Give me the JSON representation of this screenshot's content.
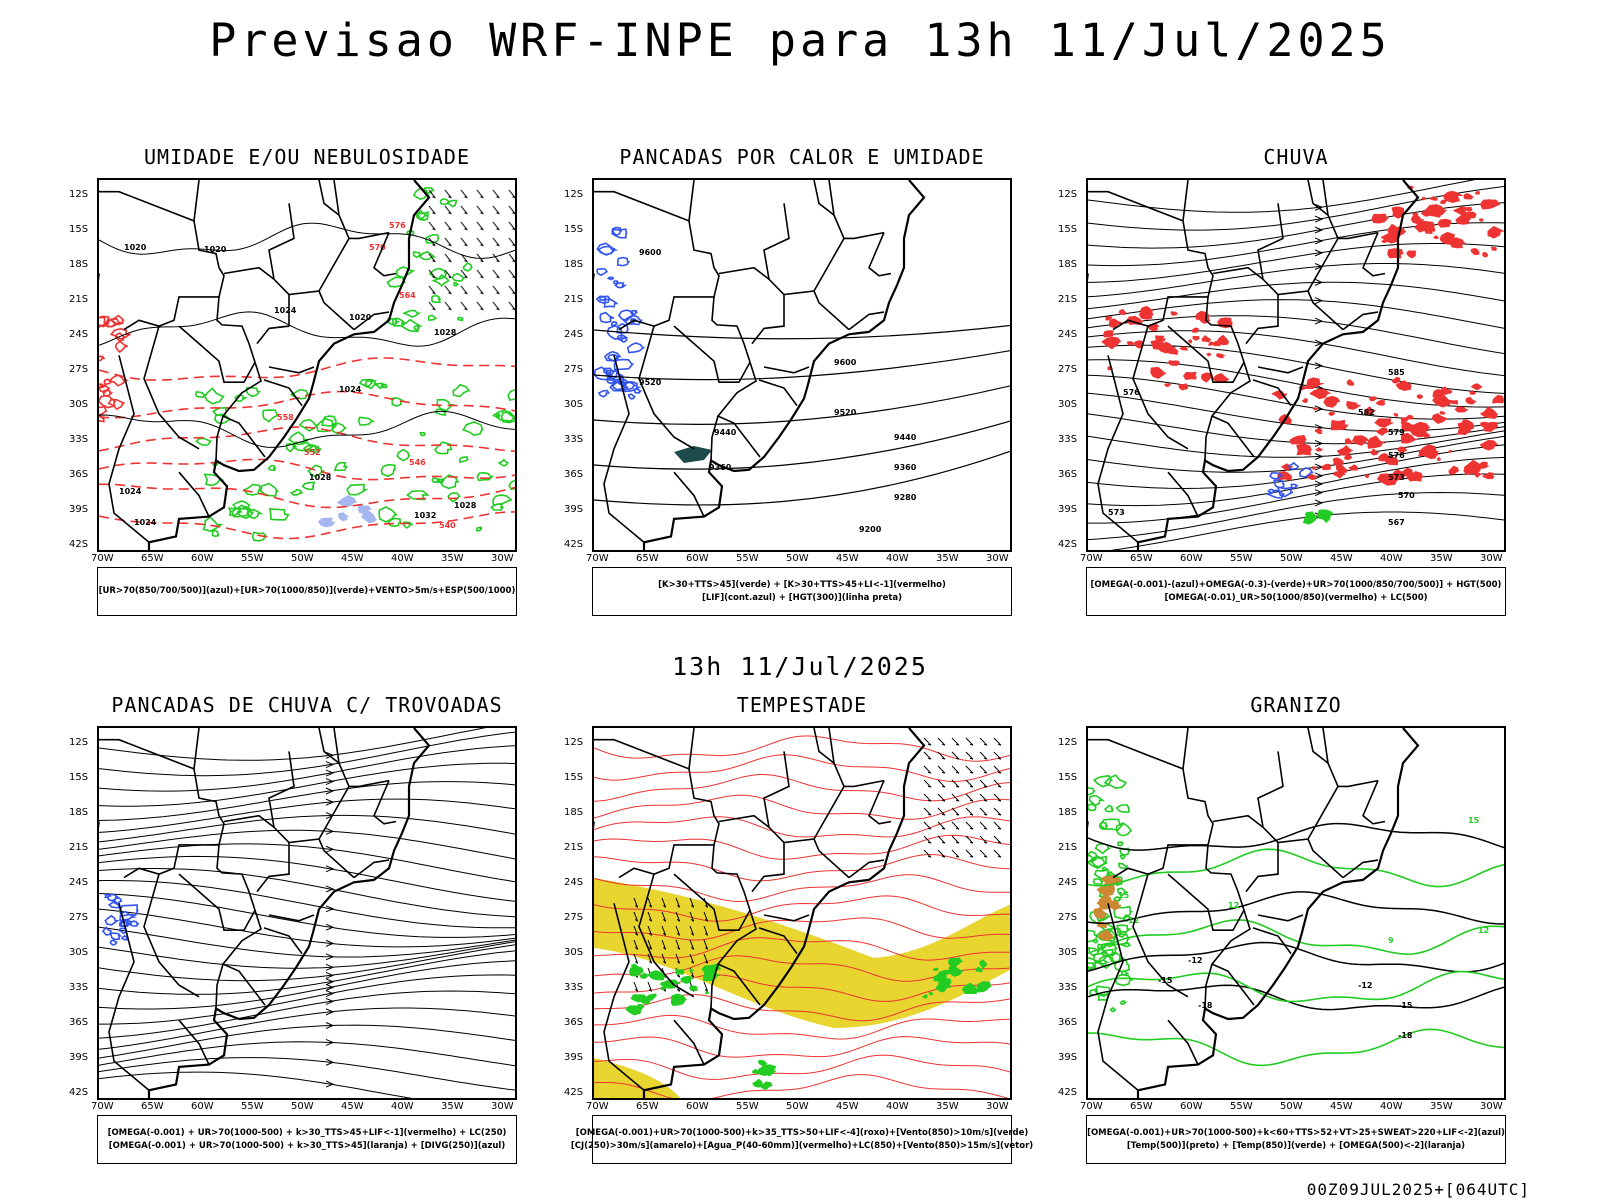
{
  "title": "Previsao WRF-INPE  para 13h 11/Jul/2025",
  "subtitle": "13h 11/Jul/2025",
  "footer": "00Z09JUL2025+[064UTC]",
  "lat_labels": [
    "12S",
    "15S",
    "18S",
    "21S",
    "24S",
    "27S",
    "30S",
    "33S",
    "36S",
    "39S",
    "42S"
  ],
  "lon_labels": [
    "70W",
    "65W",
    "60W",
    "55W",
    "50W",
    "45W",
    "40W",
    "35W",
    "30W"
  ],
  "colors": {
    "blue": "#3355ee",
    "green": "#22cc22",
    "red": "#ee3333",
    "yellow": "#e8d530",
    "light_blue": "#a6b6ee",
    "dark_teal": "#1d4a4a",
    "orange": "#cc8833",
    "black": "#000000"
  },
  "panels": [
    {
      "id": "umidade",
      "title": "UMIDADE E/OU NEBULOSIDADE",
      "legend": [
        "[UR>70(850/700/500)](azul)+[UR>70(1000/850)](verde)+VENTO>5m/s+ESP(500/1000)"
      ],
      "contour_labels_black": [
        "1020",
        "1024",
        "1020",
        "1024",
        "1028",
        "1028",
        "1028",
        "1032",
        "1024",
        "1024",
        "1020"
      ],
      "contour_labels_red": [
        "570",
        "564",
        "558",
        "552",
        "546",
        "540",
        "576"
      ]
    },
    {
      "id": "pancadas-calor",
      "title": "PANCADAS POR CALOR E UMIDADE",
      "legend": [
        "[K>30+TTS>45](verde) + [K>30+TTS>45+LI<-1](vermelho)",
        "[LIF](cont.azul) + [HGT(300)](linha preta)"
      ],
      "contour_labels_black": [
        "9600",
        "9520",
        "9440",
        "9360",
        "9280",
        "9200",
        "9600",
        "9520",
        "9440",
        "9360"
      ]
    },
    {
      "id": "chuva",
      "title": "CHUVA",
      "legend": [
        "[OMEGA(-0.001)-(azul)+OMEGA(-0.3)-(verde)+UR>70(1000/850/700/500)] + HGT(500)",
        "[OMEGA(-0.01)_UR>50(1000/850)(vermelho) + LC(500)"
      ],
      "contour_labels_black": [
        "585",
        "582",
        "579",
        "576",
        "573",
        "570",
        "567",
        "576",
        "573"
      ]
    },
    {
      "id": "trovoadas",
      "title": "PANCADAS DE CHUVA C/ TROVOADAS",
      "legend": [
        "[OMEGA(-0.001) + UR>70(1000-500) + k>30_TTS>45+LIF<-1](vermelho) + LC(250)",
        "[OMEGA(-0.001) + UR>70(1000-500) + k>30_TTS>45](laranja) + [DIVG(250)](azul)"
      ]
    },
    {
      "id": "tempestade",
      "title": "TEMPESTADE",
      "legend": [
        "[OMEGA(-0.001)+UR>70(1000-500)+k>35_TTS>50+LIF<-4](roxo)+[Vento(850)>10m/s](verde)",
        "[CJ(250)>30m/s](amarelo)+[Agua_P(40-60mm)](vermelho)+LC(850)+[Vento(850)>15m/s](vetor)"
      ]
    },
    {
      "id": "granizo",
      "title": "GRANIZO",
      "legend": [
        "[OMEGA(-0.001)+UR>70(1000-500)+k<60+TTS>52+VT>25+SWEAT>220+LIF<-2](azul)",
        "[Temp(500)](preto) + [Temp(850)](verde) + [OMEGA(500)<-2](laranja)"
      ],
      "contour_labels_black": [
        "-12",
        "-15",
        "-18",
        "-12",
        "-15",
        "-18"
      ],
      "contour_labels_green": [
        "12",
        "15",
        "12",
        "9",
        "12",
        "15"
      ]
    }
  ]
}
